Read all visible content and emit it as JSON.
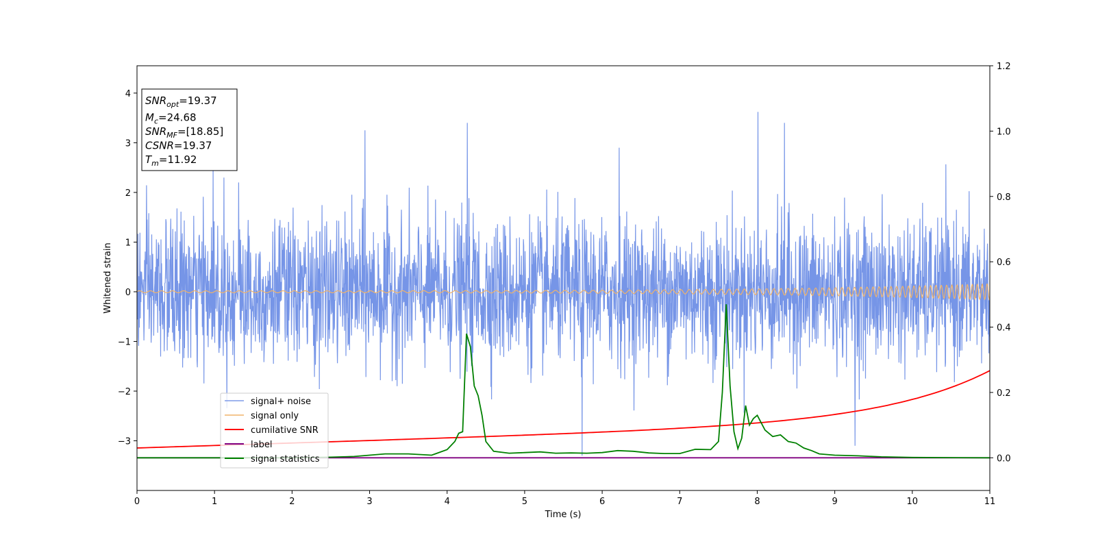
{
  "chart_data": {
    "type": "line",
    "xlabel": "Time (s)",
    "ylabel": "Whitened strain",
    "xlim": [
      0,
      11
    ],
    "ylim": [
      -4,
      4.55
    ],
    "y2lim": [
      -0.1,
      1.2
    ],
    "x_ticks": [
      "0",
      "1",
      "2",
      "3",
      "4",
      "5",
      "6",
      "7",
      "8",
      "9",
      "10",
      "11"
    ],
    "y_ticks": [
      "−3",
      "−2",
      "−1",
      "0",
      "1",
      "2",
      "3",
      "4"
    ],
    "y2_ticks": [
      "0.0",
      "0.2",
      "0.4",
      "0.6",
      "0.8",
      "1.0",
      "1.2"
    ],
    "legend_position": "lower-left",
    "annotation": [
      {
        "base": "SNR",
        "sub": "opt",
        "rest": "=19.37"
      },
      {
        "base": "M",
        "sub": "c",
        "rest": "=24.68"
      },
      {
        "base": "SNR",
        "sub": "MF",
        "rest": "=[18.85]"
      },
      {
        "base": "CSNR",
        "sub": "",
        "rest": "=19.37"
      },
      {
        "base": "T",
        "sub": "m",
        "rest": "=11.92"
      }
    ],
    "series": [
      {
        "name": "signal+ noise",
        "color": "#6f8fe6",
        "axis": "left",
        "kind": "noise",
        "description_values": {
          "typical_range": [
            -1.6,
            1.6
          ],
          "max_peak": 3.62,
          "min_peak": -3.3
        }
      },
      {
        "name": "signal only",
        "color": "#f0b36a",
        "axis": "left",
        "kind": "chirp",
        "amplitude_start": 0.02,
        "amplitude_end": 0.16
      },
      {
        "name": "cumilative SNR",
        "color": "#ff0000",
        "axis": "right",
        "x": [
          0,
          1,
          2,
          3,
          4,
          5,
          6,
          7,
          8,
          9,
          10,
          10.5,
          11
        ],
        "y": [
          0.03,
          0.036,
          0.043,
          0.05,
          0.058,
          0.067,
          0.078,
          0.092,
          0.11,
          0.132,
          0.165,
          0.19,
          0.225
        ]
      },
      {
        "name": "label",
        "color": "#800080",
        "axis": "right",
        "x": [
          0,
          11
        ],
        "y": [
          0.0,
          0.0
        ]
      },
      {
        "name": "signal statistics",
        "color": "#008000",
        "axis": "right",
        "x": [
          0,
          1,
          2,
          2.5,
          2.8,
          3.0,
          3.2,
          3.5,
          3.8,
          4.0,
          4.1,
          4.15,
          4.2,
          4.25,
          4.3,
          4.35,
          4.4,
          4.45,
          4.5,
          4.6,
          4.8,
          5.0,
          5.2,
          5.4,
          5.6,
          5.8,
          6.0,
          6.2,
          6.4,
          6.6,
          6.8,
          7.0,
          7.2,
          7.4,
          7.5,
          7.55,
          7.6,
          7.65,
          7.7,
          7.75,
          7.8,
          7.85,
          7.9,
          7.95,
          8.0,
          8.1,
          8.2,
          8.3,
          8.4,
          8.5,
          8.6,
          8.7,
          8.8,
          9.0,
          9.3,
          9.6,
          10,
          11
        ],
        "y": [
          0.0,
          0.0,
          0.0,
          0.002,
          0.004,
          0.008,
          0.012,
          0.012,
          0.008,
          0.025,
          0.05,
          0.075,
          0.08,
          0.38,
          0.34,
          0.22,
          0.19,
          0.13,
          0.05,
          0.02,
          0.014,
          0.016,
          0.018,
          0.014,
          0.015,
          0.014,
          0.016,
          0.022,
          0.02,
          0.015,
          0.013,
          0.013,
          0.026,
          0.025,
          0.05,
          0.2,
          0.47,
          0.22,
          0.08,
          0.028,
          0.06,
          0.16,
          0.1,
          0.12,
          0.13,
          0.085,
          0.065,
          0.07,
          0.05,
          0.045,
          0.03,
          0.022,
          0.012,
          0.008,
          0.006,
          0.003,
          0.001,
          0.0
        ]
      }
    ]
  }
}
